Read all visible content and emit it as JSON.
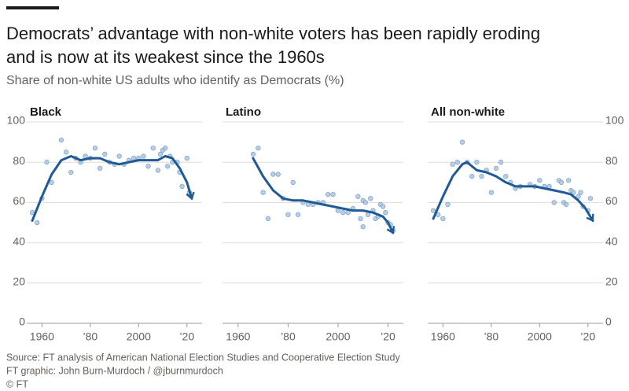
{
  "header": {
    "title_lines": [
      "Democrats’ advantage with non-white voters has been rapidly eroding",
      "and is now at its weakest since the 1960s"
    ],
    "subtitle": "Share of non-white US adults who identify as Democrats (%)"
  },
  "footer": {
    "source": "Source: FT analysis of American National Election Studies and Cooperative Election Study",
    "credit": "FT graphic: John Burn-Murdoch / @jburnmurdoch",
    "copyright": "© FT"
  },
  "chart_data": [
    {
      "type": "scatter",
      "title": "Black",
      "yaxis": "left",
      "point_color": "#a9c5e2",
      "trend_color": "#1f5a96",
      "x": [
        1956,
        1958,
        1960,
        1962,
        1964,
        1968,
        1970,
        1972,
        1974,
        1976,
        1978,
        1980,
        1982,
        1984,
        1986,
        1988,
        1990,
        1992,
        1994,
        1996,
        1998,
        2000,
        2002,
        2004,
        2006,
        2008,
        2009,
        2010,
        2011,
        2012,
        2013,
        2014,
        2016,
        2017,
        2018,
        2020,
        2021
      ],
      "values": [
        55,
        50,
        62,
        80,
        70,
        91,
        85,
        75,
        82,
        80,
        83,
        82,
        87,
        77,
        84,
        80,
        79,
        83,
        79,
        81,
        82,
        82,
        83,
        78,
        87,
        76,
        84,
        86,
        87,
        78,
        83,
        80,
        80,
        75,
        68,
        82,
        65
      ],
      "trend": {
        "x": [
          1956,
          1960,
          1964,
          1968,
          1972,
          1976,
          1980,
          1984,
          1988,
          1992,
          1996,
          2000,
          2004,
          2008,
          2011,
          2014,
          2017,
          2020,
          2022
        ],
        "values": [
          51,
          63,
          74,
          81,
          83,
          81,
          82,
          82,
          80,
          79,
          80,
          81,
          81,
          81,
          83,
          82,
          77,
          70,
          62
        ]
      },
      "xlim": [
        1955,
        2023
      ],
      "xticks": [
        1960,
        {
          "value": 1980,
          "label": "’80"
        },
        2000,
        {
          "value": 2020,
          "label": "’20"
        }
      ],
      "ylim": [
        0,
        100
      ],
      "yticks": [
        0,
        20,
        40,
        60,
        80,
        100
      ],
      "grid": true
    },
    {
      "type": "scatter",
      "title": "Latino",
      "point_color": "#a9c5e2",
      "trend_color": "#1f5a96",
      "x": [
        1966,
        1968,
        1970,
        1972,
        1974,
        1976,
        1978,
        1980,
        1982,
        1984,
        1986,
        1988,
        1990,
        1992,
        1994,
        1996,
        1998,
        2000,
        2002,
        2004,
        2006,
        2008,
        2009,
        2010,
        2010,
        2011,
        2012,
        2013,
        2014,
        2015,
        2016,
        2017,
        2018,
        2019,
        2020,
        2021,
        2022
      ],
      "values": [
        84,
        87,
        65,
        52,
        74,
        74,
        62,
        54,
        70,
        54,
        60,
        59,
        59,
        60,
        60,
        64,
        64,
        56,
        55,
        55,
        57,
        63,
        52,
        61,
        48,
        60,
        54,
        62,
        56,
        52,
        53,
        59,
        58,
        55,
        50,
        49,
        46
      ],
      "trend": {
        "x": [
          1966,
          1970,
          1974,
          1978,
          1982,
          1986,
          1990,
          1994,
          1998,
          2002,
          2006,
          2010,
          2014,
          2018,
          2020,
          2022
        ],
        "values": [
          82,
          73,
          66,
          62,
          61,
          61,
          60,
          59,
          58,
          57,
          56,
          56,
          55,
          53,
          50,
          45
        ]
      },
      "xlim": [
        1955,
        2023
      ],
      "xticks": [
        1960,
        {
          "value": 1980,
          "label": "’80"
        },
        2000,
        {
          "value": 2020,
          "label": "’20"
        }
      ],
      "ylim": [
        0,
        100
      ],
      "yticks": [
        0,
        20,
        40,
        60,
        80,
        100
      ],
      "grid": true
    },
    {
      "type": "scatter",
      "title": "All non-white",
      "yaxis": "right",
      "point_color": "#a9c5e2",
      "trend_color": "#1f5a96",
      "x": [
        1956,
        1958,
        1960,
        1962,
        1964,
        1966,
        1968,
        1970,
        1972,
        1974,
        1976,
        1978,
        1980,
        1982,
        1984,
        1986,
        1988,
        1990,
        1992,
        1996,
        1998,
        2000,
        2002,
        2004,
        2006,
        2008,
        2009,
        2010,
        2011,
        2012,
        2013,
        2014,
        2016,
        2017,
        2018,
        2020,
        2021
      ],
      "values": [
        56,
        54,
        52,
        59,
        79,
        80,
        90,
        80,
        73,
        80,
        73,
        76,
        65,
        77,
        80,
        73,
        70,
        67,
        68,
        69,
        68,
        71,
        68,
        68,
        60,
        71,
        70,
        60,
        59,
        71,
        66,
        65,
        63,
        65,
        58,
        56,
        62
      ],
      "trend": {
        "x": [
          1956,
          1960,
          1964,
          1968,
          1970,
          1974,
          1978,
          1982,
          1986,
          1990,
          1994,
          1998,
          2002,
          2006,
          2010,
          2013,
          2016,
          2019,
          2022
        ],
        "values": [
          52,
          63,
          73,
          79,
          80,
          76,
          75,
          73,
          70,
          68,
          68,
          68,
          67,
          66,
          65,
          64,
          61,
          57,
          51
        ]
      },
      "xlim": [
        1955,
        2023
      ],
      "xticks": [
        1960,
        {
          "value": 1980,
          "label": "’80"
        },
        2000,
        {
          "value": 2020,
          "label": "’20"
        }
      ],
      "ylim": [
        0,
        100
      ],
      "yticks": [
        0,
        20,
        40,
        60,
        80,
        100
      ],
      "grid": true
    }
  ]
}
